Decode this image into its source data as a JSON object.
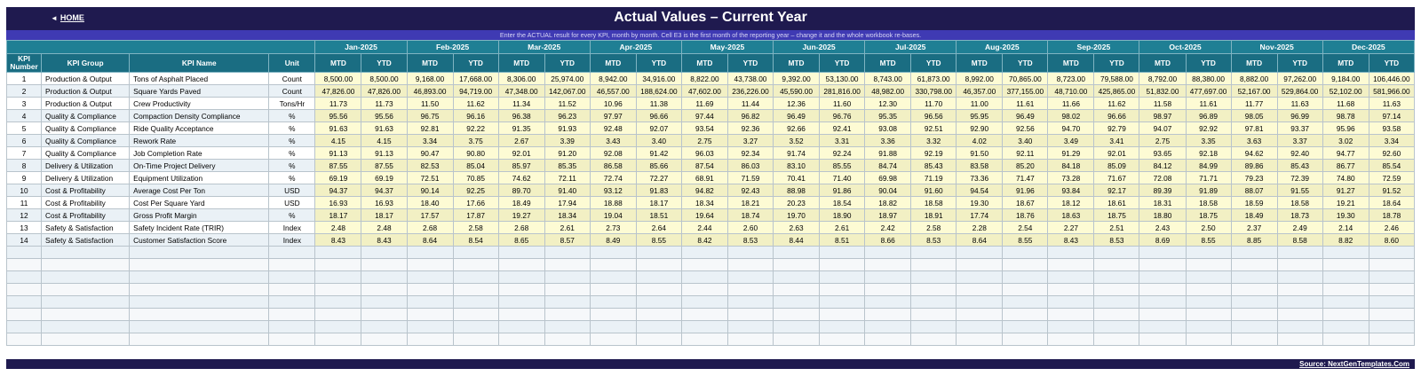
{
  "header": {
    "home_label": "HOME",
    "title": "Actual Values  –  Current Year",
    "subtitle": "Enter the ACTUAL result for every KPI, month by month. Cell E3 is the first month of the reporting year – change it and the whole workbook re-bases."
  },
  "table": {
    "col_kpi_number": "KPI Number",
    "col_group": "KPI Group",
    "col_name": "KPI Name",
    "col_unit": "Unit",
    "mtd_label": "MTD",
    "ytd_label": "YTD",
    "months": [
      "Jan-2025",
      "Feb-2025",
      "Mar-2025",
      "Apr-2025",
      "May-2025",
      "Jun-2025",
      "Jul-2025",
      "Aug-2025",
      "Sep-2025",
      "Oct-2025",
      "Nov-2025",
      "Dec-2025"
    ],
    "rows": [
      {
        "num": "1",
        "group": "Production & Output",
        "name": "Tons of Asphalt Placed",
        "unit": "Count",
        "values": [
          "8,500.00",
          "8,500.00",
          "9,168.00",
          "17,668.00",
          "8,306.00",
          "25,974.00",
          "8,942.00",
          "34,916.00",
          "8,822.00",
          "43,738.00",
          "9,392.00",
          "53,130.00",
          "8,743.00",
          "61,873.00",
          "8,992.00",
          "70,865.00",
          "8,723.00",
          "79,588.00",
          "8,792.00",
          "88,380.00",
          "8,882.00",
          "97,262.00",
          "9,184.00",
          "106,446.00"
        ]
      },
      {
        "num": "2",
        "group": "Production & Output",
        "name": "Square Yards Paved",
        "unit": "Count",
        "values": [
          "47,826.00",
          "47,826.00",
          "46,893.00",
          "94,719.00",
          "47,348.00",
          "142,067.00",
          "46,557.00",
          "188,624.00",
          "47,602.00",
          "236,226.00",
          "45,590.00",
          "281,816.00",
          "48,982.00",
          "330,798.00",
          "46,357.00",
          "377,155.00",
          "48,710.00",
          "425,865.00",
          "51,832.00",
          "477,697.00",
          "52,167.00",
          "529,864.00",
          "52,102.00",
          "581,966.00"
        ]
      },
      {
        "num": "3",
        "group": "Production & Output",
        "name": "Crew Productivity",
        "unit": "Tons/Hr",
        "values": [
          "11.73",
          "11.73",
          "11.50",
          "11.62",
          "11.34",
          "11.52",
          "10.96",
          "11.38",
          "11.69",
          "11.44",
          "12.36",
          "11.60",
          "12.30",
          "11.70",
          "11.00",
          "11.61",
          "11.66",
          "11.62",
          "11.58",
          "11.61",
          "11.77",
          "11.63",
          "11.68",
          "11.63"
        ]
      },
      {
        "num": "4",
        "group": "Quality & Compliance",
        "name": "Compaction Density Compliance",
        "unit": "%",
        "values": [
          "95.56",
          "95.56",
          "96.75",
          "96.16",
          "96.38",
          "96.23",
          "97.97",
          "96.66",
          "97.44",
          "96.82",
          "96.49",
          "96.76",
          "95.35",
          "96.56",
          "95.95",
          "96.49",
          "98.02",
          "96.66",
          "98.97",
          "96.89",
          "98.05",
          "96.99",
          "98.78",
          "97.14"
        ]
      },
      {
        "num": "5",
        "group": "Quality & Compliance",
        "name": "Ride Quality Acceptance",
        "unit": "%",
        "values": [
          "91.63",
          "91.63",
          "92.81",
          "92.22",
          "91.35",
          "91.93",
          "92.48",
          "92.07",
          "93.54",
          "92.36",
          "92.66",
          "92.41",
          "93.08",
          "92.51",
          "92.90",
          "92.56",
          "94.70",
          "92.79",
          "94.07",
          "92.92",
          "97.81",
          "93.37",
          "95.96",
          "93.58"
        ]
      },
      {
        "num": "6",
        "group": "Quality & Compliance",
        "name": "Rework Rate",
        "unit": "%",
        "values": [
          "4.15",
          "4.15",
          "3.34",
          "3.75",
          "2.67",
          "3.39",
          "3.43",
          "3.40",
          "2.75",
          "3.27",
          "3.52",
          "3.31",
          "3.36",
          "3.32",
          "4.02",
          "3.40",
          "3.49",
          "3.41",
          "2.75",
          "3.35",
          "3.63",
          "3.37",
          "3.02",
          "3.34"
        ]
      },
      {
        "num": "7",
        "group": "Quality & Compliance",
        "name": "Job Completion Rate",
        "unit": "%",
        "values": [
          "91.13",
          "91.13",
          "90.47",
          "90.80",
          "92.01",
          "91.20",
          "92.08",
          "91.42",
          "96.03",
          "92.34",
          "91.74",
          "92.24",
          "91.88",
          "92.19",
          "91.50",
          "92.11",
          "91.29",
          "92.01",
          "93.65",
          "92.18",
          "94.62",
          "92.40",
          "94.77",
          "92.60"
        ]
      },
      {
        "num": "8",
        "group": "Delivery & Utilization",
        "name": "On-Time Project Delivery",
        "unit": "%",
        "values": [
          "87.55",
          "87.55",
          "82.53",
          "85.04",
          "85.97",
          "85.35",
          "86.58",
          "85.66",
          "87.54",
          "86.03",
          "83.10",
          "85.55",
          "84.74",
          "85.43",
          "83.58",
          "85.20",
          "84.18",
          "85.09",
          "84.12",
          "84.99",
          "89.86",
          "85.43",
          "86.77",
          "85.54"
        ]
      },
      {
        "num": "9",
        "group": "Delivery & Utilization",
        "name": "Equipment Utilization",
        "unit": "%",
        "values": [
          "69.19",
          "69.19",
          "72.51",
          "70.85",
          "74.62",
          "72.11",
          "72.74",
          "72.27",
          "68.91",
          "71.59",
          "70.41",
          "71.40",
          "69.98",
          "71.19",
          "73.36",
          "71.47",
          "73.28",
          "71.67",
          "72.08",
          "71.71",
          "79.23",
          "72.39",
          "74.80",
          "72.59"
        ]
      },
      {
        "num": "10",
        "group": "Cost & Profitability",
        "name": "Average Cost Per Ton",
        "unit": "USD",
        "values": [
          "94.37",
          "94.37",
          "90.14",
          "92.25",
          "89.70",
          "91.40",
          "93.12",
          "91.83",
          "94.82",
          "92.43",
          "88.98",
          "91.86",
          "90.04",
          "91.60",
          "94.54",
          "91.96",
          "93.84",
          "92.17",
          "89.39",
          "91.89",
          "88.07",
          "91.55",
          "91.27",
          "91.52"
        ]
      },
      {
        "num": "11",
        "group": "Cost & Profitability",
        "name": "Cost Per Square Yard",
        "unit": "USD",
        "values": [
          "16.93",
          "16.93",
          "18.40",
          "17.66",
          "18.49",
          "17.94",
          "18.88",
          "18.17",
          "18.34",
          "18.21",
          "20.23",
          "18.54",
          "18.82",
          "18.58",
          "19.30",
          "18.67",
          "18.12",
          "18.61",
          "18.31",
          "18.58",
          "18.59",
          "18.58",
          "19.21",
          "18.64"
        ]
      },
      {
        "num": "12",
        "group": "Cost & Profitability",
        "name": "Gross Profit Margin",
        "unit": "%",
        "values": [
          "18.17",
          "18.17",
          "17.57",
          "17.87",
          "19.27",
          "18.34",
          "19.04",
          "18.51",
          "19.64",
          "18.74",
          "19.70",
          "18.90",
          "18.97",
          "18.91",
          "17.74",
          "18.76",
          "18.63",
          "18.75",
          "18.80",
          "18.75",
          "18.49",
          "18.73",
          "19.30",
          "18.78"
        ]
      },
      {
        "num": "13",
        "group": "Safety & Satisfaction",
        "name": "Safety Incident Rate (TRIR)",
        "unit": "Index",
        "values": [
          "2.48",
          "2.48",
          "2.68",
          "2.58",
          "2.68",
          "2.61",
          "2.73",
          "2.64",
          "2.44",
          "2.60",
          "2.63",
          "2.61",
          "2.42",
          "2.58",
          "2.28",
          "2.54",
          "2.27",
          "2.51",
          "2.43",
          "2.50",
          "2.37",
          "2.49",
          "2.14",
          "2.46"
        ]
      },
      {
        "num": "14",
        "group": "Safety & Satisfaction",
        "name": "Customer Satisfaction Score",
        "unit": "Index",
        "values": [
          "8.43",
          "8.43",
          "8.64",
          "8.54",
          "8.65",
          "8.57",
          "8.49",
          "8.55",
          "8.42",
          "8.53",
          "8.44",
          "8.51",
          "8.66",
          "8.53",
          "8.64",
          "8.55",
          "8.43",
          "8.53",
          "8.69",
          "8.55",
          "8.85",
          "8.58",
          "8.82",
          "8.60"
        ]
      }
    ]
  },
  "footer": {
    "source": "Source: NextGenTemplates.Com"
  },
  "colors": {
    "navy": "#1f1a4f",
    "teal": "#1f7f94",
    "subbar": "#3f3ab3",
    "input_cell": "#fdfbd4"
  }
}
